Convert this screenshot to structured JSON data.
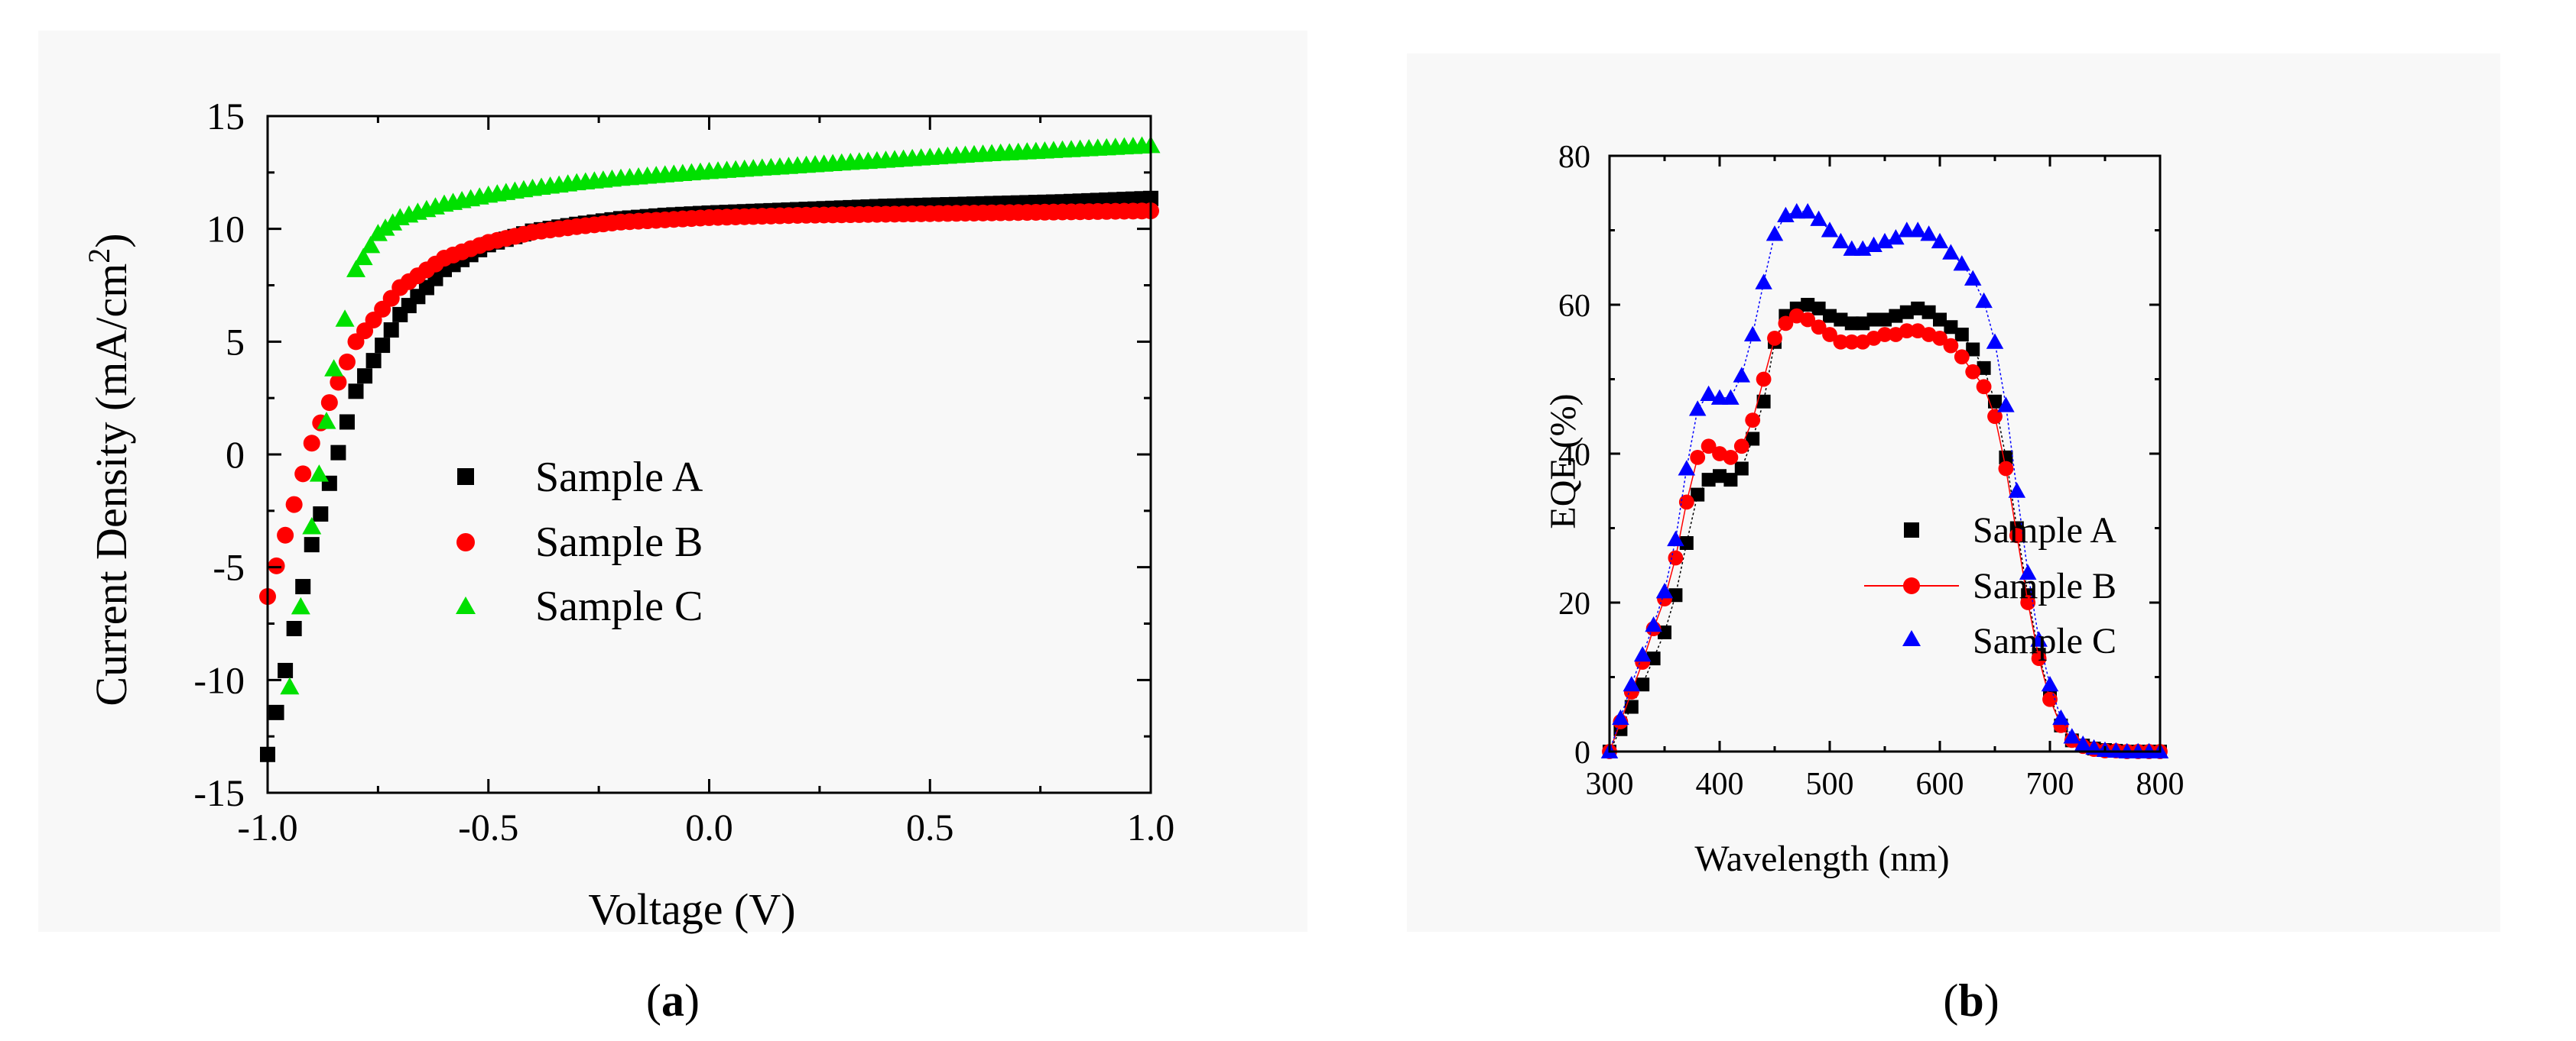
{
  "colors": {
    "sample_a": "#000000",
    "sample_b": "#ff0000",
    "sample_c_a": "#00e000",
    "sample_c_b": "#0000ff",
    "axis": "#000000",
    "panel_bg": "#f8f8f8"
  },
  "chart_data": [
    {
      "id": "a",
      "type": "scatter",
      "panel_label_open": "(",
      "panel_label_letter": "a",
      "panel_label_close": ")",
      "xlabel": "Voltage (V)",
      "ylabel": "Current Density (mA/cm",
      "ylabel_sup": "2",
      "ylabel_end": ")",
      "xlim": [
        -1.0,
        1.0
      ],
      "ylim": [
        -15,
        15
      ],
      "xticks": [
        -1.0,
        -0.5,
        0.0,
        0.5,
        1.0
      ],
      "xtick_labels": [
        "-1.0",
        "-0.5",
        "0.0",
        "0.5",
        "1.0"
      ],
      "yticks": [
        -15,
        -10,
        -5,
        0,
        5,
        10,
        15
      ],
      "ytick_labels": [
        "-15",
        "-10",
        "-5",
        "0",
        "5",
        "10",
        "15"
      ],
      "legend_position": "center-right",
      "series": [
        {
          "name": "Sample A",
          "marker": "square",
          "color": "#000000",
          "x": [
            -1.0,
            -0.9,
            -0.8,
            -0.7,
            -0.6,
            -0.5,
            -0.4,
            -0.3,
            -0.2,
            -0.1,
            0.0,
            0.2,
            0.4,
            0.6,
            0.8,
            1.0
          ],
          "y": [
            -13.3,
            -4.0,
            2.8,
            6.2,
            8.2,
            9.3,
            9.9,
            10.2,
            10.45,
            10.6,
            10.7,
            10.85,
            11.0,
            11.1,
            11.2,
            11.35
          ]
        },
        {
          "name": "Sample B",
          "marker": "circle",
          "color": "#ff0000",
          "x": [
            -1.0,
            -0.9,
            -0.8,
            -0.7,
            -0.6,
            -0.5,
            -0.4,
            -0.3,
            -0.2,
            -0.1,
            0.0,
            0.2,
            0.4,
            0.6,
            0.8,
            1.0
          ],
          "y": [
            -6.3,
            0.5,
            5.0,
            7.4,
            8.7,
            9.4,
            9.85,
            10.1,
            10.3,
            10.4,
            10.5,
            10.6,
            10.65,
            10.7,
            10.75,
            10.8
          ]
        },
        {
          "name": "Sample C",
          "marker": "triangle",
          "color": "#00e000",
          "x": [
            -0.95,
            -0.9,
            -0.85,
            -0.8,
            -0.75,
            -0.7,
            -0.6,
            -0.5,
            -0.4,
            -0.3,
            -0.2,
            -0.1,
            0.0,
            0.2,
            0.4,
            0.6,
            0.8,
            1.0
          ],
          "y": [
            -10.3,
            -3.2,
            3.8,
            8.2,
            9.8,
            10.5,
            11.1,
            11.5,
            11.8,
            12.05,
            12.25,
            12.4,
            12.55,
            12.8,
            13.05,
            13.3,
            13.5,
            13.7
          ]
        }
      ]
    },
    {
      "id": "b",
      "type": "line",
      "panel_label_open": "(",
      "panel_label_letter": "b",
      "panel_label_close": ")",
      "xlabel": "Wavelength (nm)",
      "ylabel": "EQE (%)",
      "xlim": [
        300,
        800
      ],
      "ylim": [
        0,
        80
      ],
      "xticks": [
        300,
        400,
        500,
        600,
        700,
        800
      ],
      "xtick_labels": [
        "300",
        "400",
        "500",
        "600",
        "700",
        "800"
      ],
      "yticks": [
        0,
        20,
        40,
        60,
        80
      ],
      "ytick_labels": [
        "0",
        "20",
        "40",
        "60",
        "80"
      ],
      "legend_position": "bottom-center",
      "x": [
        300,
        310,
        320,
        330,
        340,
        350,
        360,
        370,
        380,
        390,
        400,
        410,
        420,
        430,
        440,
        450,
        460,
        470,
        480,
        490,
        500,
        510,
        520,
        530,
        540,
        550,
        560,
        570,
        580,
        590,
        600,
        610,
        620,
        630,
        640,
        650,
        660,
        670,
        680,
        690,
        700,
        710,
        720,
        730,
        740,
        750,
        760,
        770,
        780,
        790,
        800
      ],
      "series": [
        {
          "name": "Sample A",
          "marker": "square",
          "color": "#000000",
          "show_legend_line": false,
          "y": [
            0.0,
            3.0,
            6.0,
            9.0,
            12.5,
            16.0,
            21.0,
            28.0,
            34.5,
            36.5,
            37.0,
            36.5,
            38.0,
            42.0,
            47.0,
            55.0,
            58.5,
            59.5,
            60.0,
            59.5,
            58.5,
            58.0,
            57.5,
            57.5,
            58.0,
            58.0,
            58.5,
            59.0,
            59.5,
            59.0,
            58.0,
            57.0,
            56.0,
            54.0,
            51.5,
            47.0,
            39.5,
            30.0,
            21.0,
            13.0,
            7.5,
            3.5,
            1.5,
            0.8,
            0.4,
            0.2,
            0.1,
            0.0,
            0.0,
            0.0,
            0.0
          ]
        },
        {
          "name": "Sample B",
          "marker": "circle",
          "color": "#ff0000",
          "show_legend_line": true,
          "y": [
            0.0,
            4.0,
            8.0,
            12.0,
            16.5,
            20.5,
            26.0,
            33.5,
            39.5,
            41.0,
            40.0,
            39.5,
            41.0,
            44.5,
            50.0,
            55.5,
            57.5,
            58.5,
            58.0,
            57.0,
            56.0,
            55.0,
            55.0,
            55.0,
            55.5,
            56.0,
            56.0,
            56.5,
            56.5,
            56.0,
            55.5,
            54.5,
            53.0,
            51.0,
            49.0,
            45.0,
            38.0,
            29.0,
            20.0,
            12.5,
            7.0,
            3.5,
            1.5,
            0.7,
            0.3,
            0.1,
            0.1,
            0.0,
            0.0,
            0.0,
            0.0
          ]
        },
        {
          "name": "Sample C",
          "marker": "triangle",
          "color": "#0000ff",
          "show_legend_line": false,
          "y": [
            0.0,
            4.5,
            9.0,
            13.0,
            17.0,
            21.5,
            28.5,
            38.0,
            46.0,
            48.0,
            47.5,
            47.5,
            50.5,
            56.0,
            63.0,
            69.5,
            72.0,
            72.5,
            72.5,
            71.5,
            70.0,
            68.5,
            67.5,
            67.5,
            68.0,
            68.5,
            69.0,
            70.0,
            70.0,
            69.5,
            68.5,
            67.0,
            65.5,
            63.5,
            60.5,
            55.0,
            46.5,
            35.0,
            24.0,
            15.0,
            9.0,
            4.5,
            2.0,
            1.0,
            0.5,
            0.2,
            0.1,
            0.0,
            0.0,
            0.0,
            0.0
          ]
        }
      ]
    }
  ]
}
